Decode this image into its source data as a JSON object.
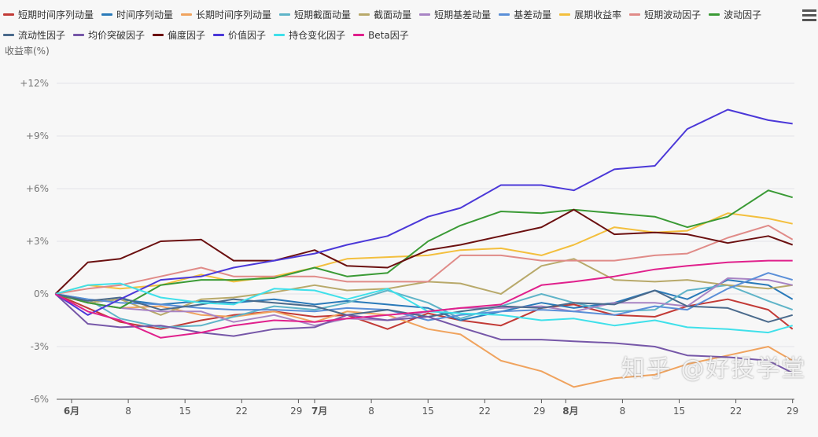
{
  "chart_data": {
    "type": "line",
    "ylabel": "收益率(%)",
    "ylim": [
      -6,
      12
    ],
    "yticks": [
      "+12%",
      "+9%",
      "+6%",
      "+3%",
      "0%",
      "-3%",
      "-6%"
    ],
    "ytick_values": [
      12,
      9,
      6,
      3,
      0,
      -3,
      -6
    ],
    "xticks": [
      {
        "date": "2019-06-01",
        "label": "6月"
      },
      {
        "date": "2019-06-08",
        "label": "8"
      },
      {
        "date": "2019-06-15",
        "label": "15"
      },
      {
        "date": "2019-06-22",
        "label": "22"
      },
      {
        "date": "2019-06-29",
        "label": "29"
      },
      {
        "date": "2019-07-01",
        "label": "7月"
      },
      {
        "date": "2019-07-08",
        "label": "8"
      },
      {
        "date": "2019-07-15",
        "label": "15"
      },
      {
        "date": "2019-07-22",
        "label": "22"
      },
      {
        "date": "2019-07-29",
        "label": "29"
      },
      {
        "date": "2019-08-01",
        "label": "8月"
      },
      {
        "date": "2019-08-08",
        "label": "8"
      },
      {
        "date": "2019-08-15",
        "label": "15"
      },
      {
        "date": "2019-08-22",
        "label": "22"
      },
      {
        "date": "2019-08-29",
        "label": "29"
      }
    ],
    "grid": true,
    "legend_position": "top",
    "x": [
      "2019-05-30",
      "2019-06-03",
      "2019-06-07",
      "2019-06-12",
      "2019-06-17",
      "2019-06-21",
      "2019-06-26",
      "2019-07-01",
      "2019-07-05",
      "2019-07-10",
      "2019-07-15",
      "2019-07-19",
      "2019-07-24",
      "2019-07-29",
      "2019-08-02",
      "2019-08-07",
      "2019-08-12",
      "2019-08-16",
      "2019-08-21",
      "2019-08-26",
      "2019-08-29"
    ],
    "series": [
      {
        "name": "短期时间序列动量",
        "color": "#c23a36",
        "values": [
          0,
          -0.8,
          -1.6,
          -2.0,
          -1.5,
          -1.2,
          -1.0,
          -1.3,
          -1.2,
          -2.0,
          -1.1,
          -1.5,
          -1.8,
          -0.8,
          -0.6,
          -1.2,
          -1.3,
          -0.7,
          -0.3,
          -0.9,
          -2.0
        ]
      },
      {
        "name": "时间序列动量",
        "color": "#2a7ab9",
        "values": [
          0,
          -0.5,
          -0.3,
          -0.6,
          -0.4,
          -0.5,
          -0.3,
          -0.6,
          -0.4,
          -0.6,
          -0.8,
          -1.5,
          -1.0,
          -0.5,
          -0.8,
          -0.5,
          0.2,
          -0.3,
          0.8,
          0.5,
          -0.3
        ]
      },
      {
        "name": "长期时间序列动量",
        "color": "#f0a35e",
        "values": [
          0,
          -0.5,
          -0.8,
          -0.7,
          -1.2,
          -1.3,
          -1.0,
          -1.6,
          -1.0,
          -1.2,
          -2.0,
          -2.3,
          -3.8,
          -4.4,
          -5.3,
          -4.8,
          -4.6,
          -4.0,
          -3.5,
          -3.0,
          -3.8
        ]
      },
      {
        "name": "短期截面动量",
        "color": "#5fb4c8",
        "values": [
          0,
          -0.3,
          -1.4,
          -1.9,
          -1.8,
          -1.3,
          -0.7,
          -0.9,
          -0.5,
          0.2,
          -0.5,
          -1.4,
          -0.7,
          0,
          -0.5,
          -1.0,
          -0.9,
          0.2,
          0.5,
          -0.4,
          -0.9
        ]
      },
      {
        "name": "截面动量",
        "color": "#b8a96a",
        "values": [
          0,
          -0.5,
          -0.3,
          -1.2,
          -0.3,
          -0.2,
          0.1,
          0.5,
          0.2,
          0.3,
          0.7,
          0.6,
          0.0,
          1.6,
          2.0,
          0.8,
          0.7,
          0.8,
          0.5,
          0.3,
          0.5
        ]
      },
      {
        "name": "短期基差动量",
        "color": "#a884c4",
        "values": [
          0,
          -0.5,
          -0.8,
          -1.0,
          -1.0,
          -1.6,
          -1.2,
          -1.8,
          -1.4,
          -1.5,
          -1.0,
          -0.8,
          -0.8,
          -0.7,
          -1.0,
          -0.5,
          -0.5,
          -0.7,
          0.9,
          0.8,
          0.5
        ]
      },
      {
        "name": "基差动量",
        "color": "#5a8fd8",
        "values": [
          0,
          -0.3,
          -0.5,
          -0.6,
          -0.8,
          -0.9,
          -0.9,
          -1.0,
          -0.8,
          -0.9,
          -1.5,
          -1.2,
          -1.0,
          -0.9,
          -1.0,
          -1.2,
          -0.7,
          -0.9,
          0.3,
          1.2,
          0.8
        ]
      },
      {
        "name": "展期收益率",
        "color": "#f3bf3d",
        "values": [
          0,
          0.5,
          0.3,
          0.5,
          1.1,
          0.7,
          1.0,
          1.5,
          2.0,
          2.1,
          2.2,
          2.5,
          2.6,
          2.2,
          2.8,
          3.8,
          3.5,
          3.6,
          4.6,
          4.3,
          4.0
        ]
      },
      {
        "name": "短期波动因子",
        "color": "#e08b88",
        "values": [
          0,
          0.3,
          0.5,
          1.0,
          1.5,
          1.0,
          1.0,
          1.0,
          0.7,
          0.7,
          0.7,
          2.2,
          2.2,
          1.9,
          1.9,
          1.9,
          2.2,
          2.3,
          3.2,
          3.9,
          3.1
        ]
      },
      {
        "name": "波动因子",
        "color": "#3a9a35",
        "values": [
          0,
          -0.5,
          -0.8,
          0.5,
          0.8,
          0.8,
          0.9,
          1.5,
          1.0,
          1.2,
          3.0,
          3.9,
          4.7,
          4.6,
          4.8,
          4.6,
          4.4,
          3.8,
          4.4,
          5.9,
          5.5
        ]
      },
      {
        "name": "流动性因子",
        "color": "#4a6a8c",
        "values": [
          0,
          -0.4,
          -0.2,
          -0.9,
          -0.6,
          -0.3,
          -0.5,
          -0.7,
          -1.2,
          -0.9,
          -1.3,
          -1.0,
          -0.7,
          -0.8,
          -0.5,
          -0.6,
          0.2,
          -0.7,
          -0.8,
          -1.6,
          -1.2
        ]
      },
      {
        "name": "均价突破因子",
        "color": "#7657a8",
        "values": [
          0,
          -1.7,
          -1.9,
          -1.8,
          -2.2,
          -2.4,
          -2.0,
          -1.9,
          -1.2,
          -1.5,
          -1.3,
          -1.9,
          -2.6,
          -2.6,
          -2.7,
          -2.8,
          -3.0,
          -3.5,
          -3.6,
          -3.8,
          -4.5
        ]
      },
      {
        "name": "偏度因子",
        "color": "#6b1010",
        "values": [
          0,
          1.8,
          2.0,
          3.0,
          3.1,
          1.9,
          1.9,
          2.5,
          1.6,
          1.5,
          2.5,
          2.8,
          3.3,
          3.8,
          4.8,
          3.4,
          3.5,
          3.4,
          2.9,
          3.3,
          2.8
        ]
      },
      {
        "name": "价值因子",
        "color": "#4b38d8",
        "values": [
          0,
          -1.2,
          -0.3,
          0.8,
          1.0,
          1.5,
          1.9,
          2.3,
          2.8,
          3.3,
          4.4,
          4.9,
          6.2,
          6.2,
          5.9,
          7.1,
          7.3,
          9.4,
          10.5,
          9.9,
          9.7
        ]
      },
      {
        "name": "持仓变化因子",
        "color": "#3fe0ea",
        "values": [
          0,
          0.5,
          0.6,
          -0.2,
          -0.5,
          -0.6,
          0.3,
          0.2,
          -0.3,
          0.3,
          -1.0,
          -1.1,
          -1.2,
          -1.5,
          -1.4,
          -1.8,
          -1.5,
          -1.9,
          -2.0,
          -2.2,
          -1.8
        ]
      },
      {
        "name": "Beta因子",
        "color": "#e0208c",
        "values": [
          0,
          -1.0,
          -1.5,
          -2.5,
          -2.2,
          -1.8,
          -1.5,
          -1.6,
          -1.4,
          -1.2,
          -1.0,
          -0.8,
          -0.6,
          0.5,
          0.7,
          1.0,
          1.4,
          1.6,
          1.8,
          1.9,
          1.9
        ]
      }
    ]
  },
  "watermark": "知乎 @好投学堂"
}
